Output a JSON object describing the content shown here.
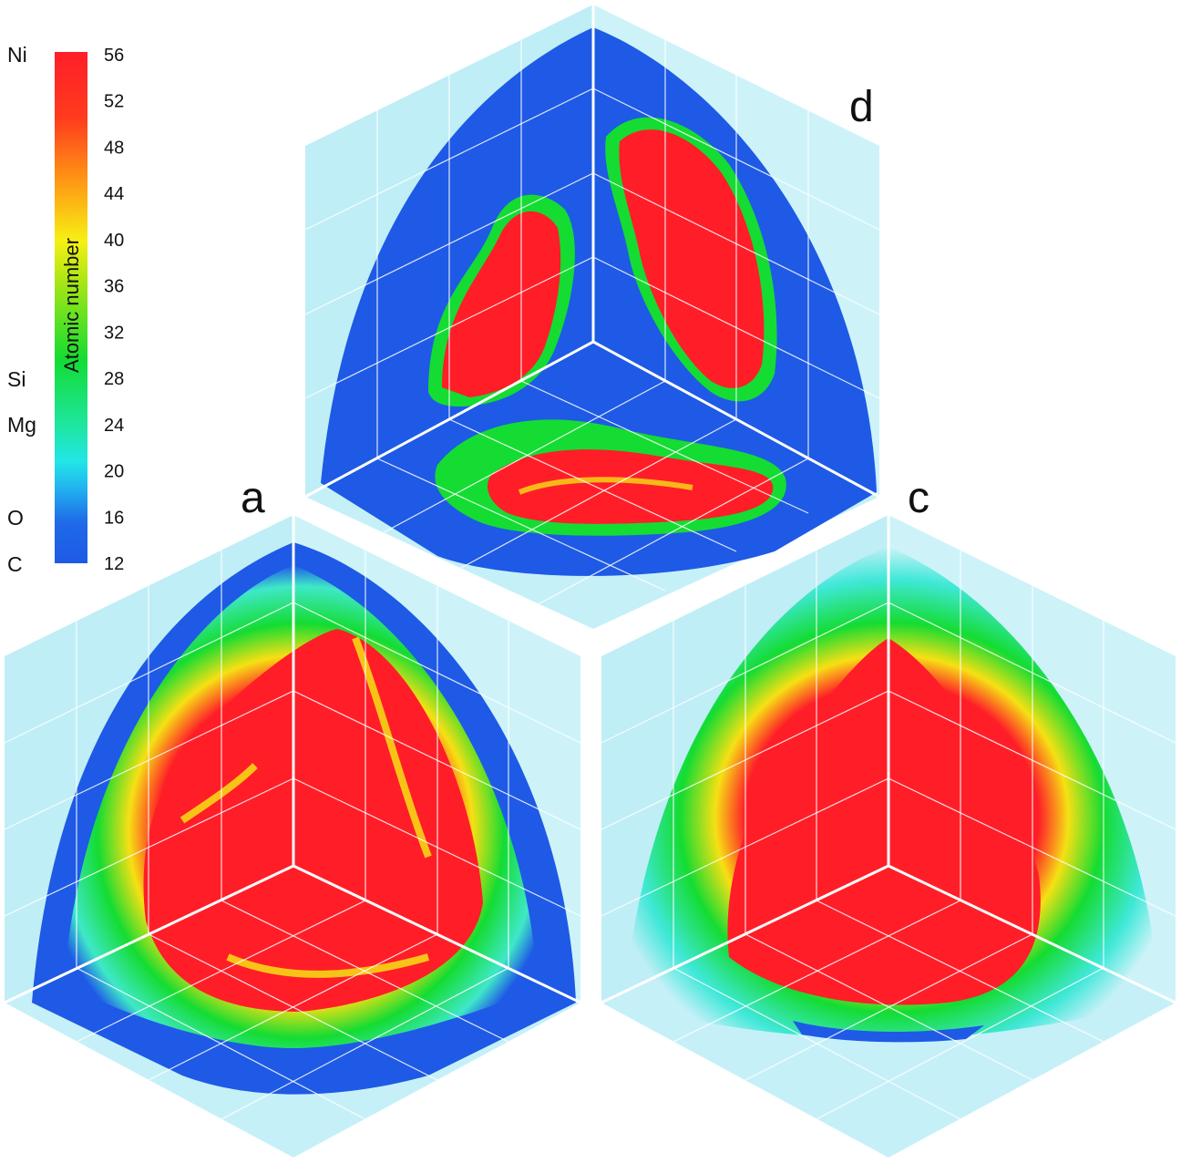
{
  "colorbar": {
    "title": "Atomic number",
    "ticks": [
      "56",
      "52",
      "48",
      "44",
      "40",
      "36",
      "32",
      "28",
      "24",
      "20",
      "16",
      "12"
    ],
    "range": [
      12,
      56
    ],
    "colors": [
      "#1e5ae6",
      "#1e78ee",
      "#22ccf0",
      "#1ee6b0",
      "#14dc32",
      "#9ee614",
      "#f6f014",
      "#ff9614",
      "#ff3c1e",
      "#ff1e28"
    ]
  },
  "elements": {
    "ni": "Ni",
    "si": "Si",
    "mg": "Mg",
    "o": "O",
    "c": "C"
  },
  "panels": {
    "d": "d",
    "a": "a",
    "c": "c"
  },
  "colors": {
    "background_wall": "#bfeef6",
    "oxygen_blue": "#1e5ae6",
    "nickel_red": "#ff1e28",
    "intermediate_green": "#14dc32",
    "cyan": "#3fe8d8"
  }
}
